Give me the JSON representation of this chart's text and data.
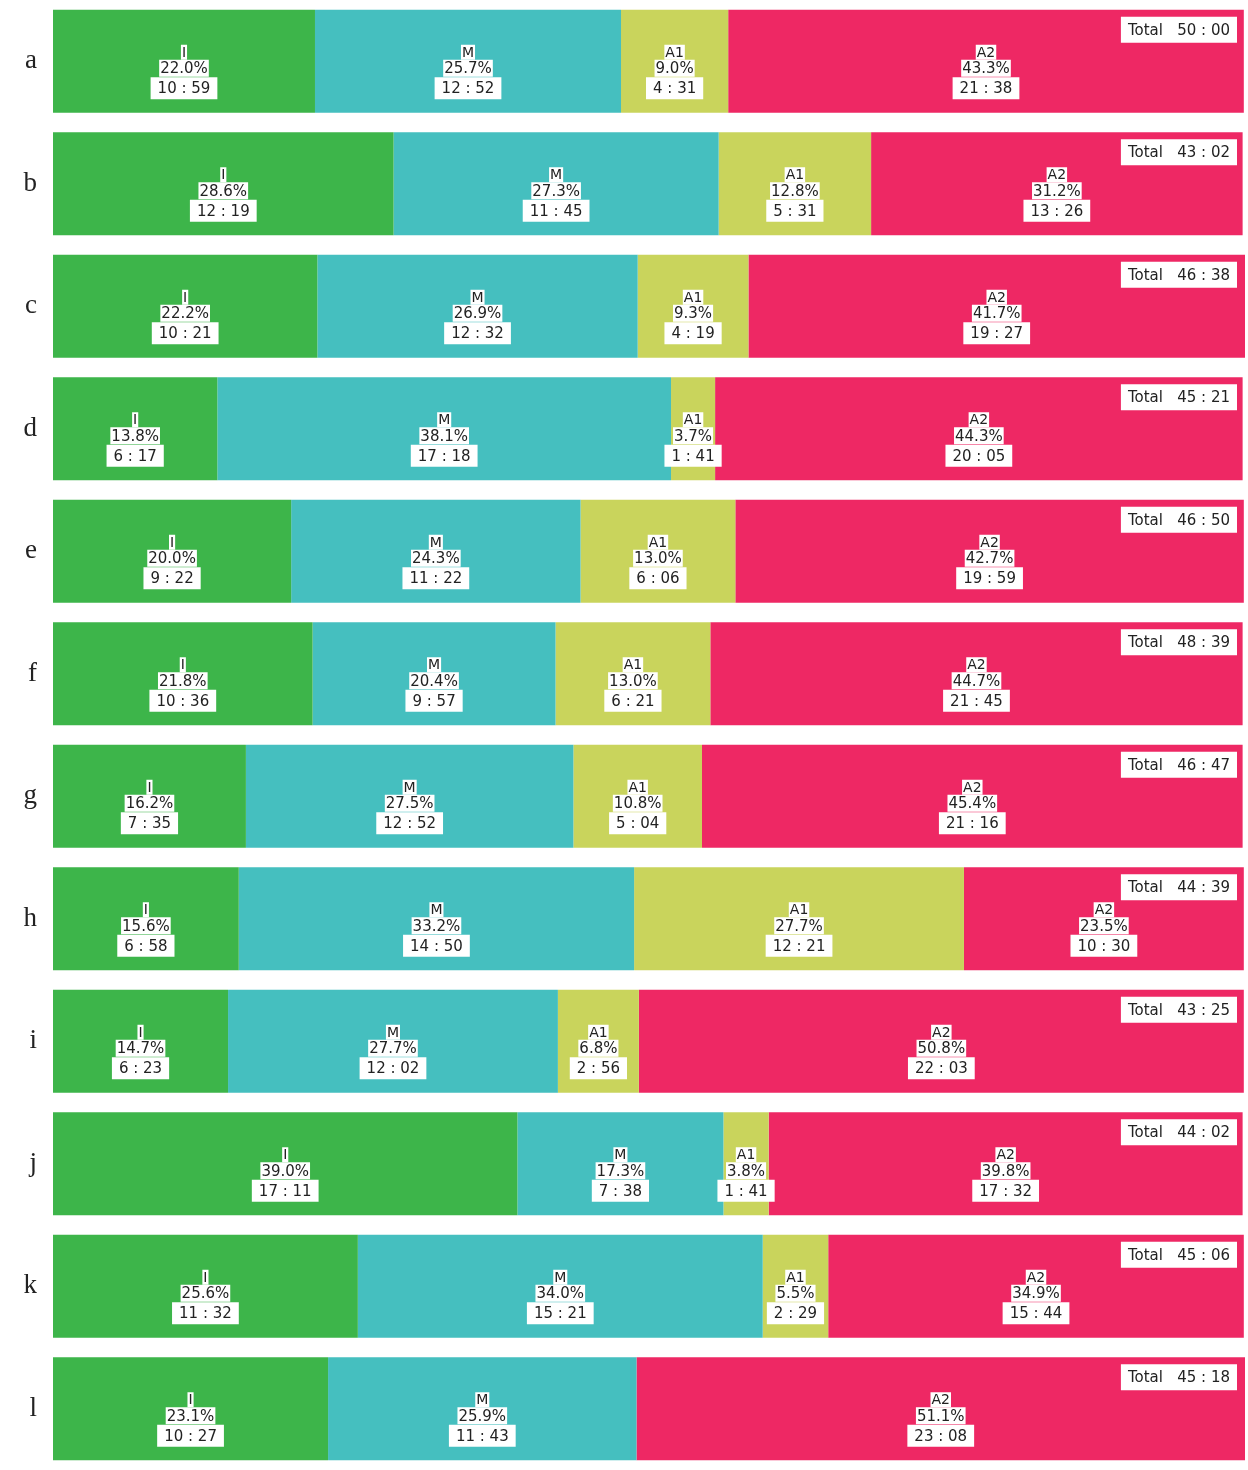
{
  "chart_data": {
    "type": "bar",
    "orientation": "horizontal",
    "stacked": true,
    "legend": false,
    "tick_labels": "y",
    "xlim": [
      0,
      100.1
    ],
    "categories": [
      "a",
      "b",
      "c",
      "d",
      "e",
      "f",
      "g",
      "h",
      "i",
      "j",
      "k",
      "l"
    ],
    "series": [
      {
        "name": "I",
        "color": "#3db54a",
        "values": [
          22.0,
          28.6,
          22.2,
          13.8,
          20.0,
          21.8,
          16.2,
          15.6,
          14.7,
          39.0,
          25.6,
          23.1
        ],
        "value_labels": [
          "22.0%\n10 : 59",
          "28.6%\n12 : 19",
          "22.2%\n10 : 21",
          "13.8%\n6 : 17",
          "20.0%\n9 : 22",
          "21.8%\n10 : 36",
          "16.2%\n7 : 35",
          "15.6%\n6 : 58",
          "14.7%\n6 : 23",
          "39.0%\n17 : 11",
          "25.6%\n11 : 32",
          "23.1%\n10 : 27"
        ]
      },
      {
        "name": "M",
        "color": "#45bfbf",
        "values": [
          25.7,
          27.3,
          26.9,
          38.1,
          24.3,
          20.4,
          27.5,
          33.2,
          27.7,
          17.3,
          34.0,
          25.9
        ],
        "value_labels": [
          "25.7%\n12 : 52",
          "27.3%\n11 : 45",
          "26.9%\n12 : 32",
          "38.1%\n17 : 18",
          "24.3%\n11 : 22",
          "20.4%\n9 : 57",
          "27.5%\n12 : 52",
          "33.2%\n14 : 50",
          "27.7%\n12 : 02",
          "17.3%\n7 : 38",
          "34.0%\n15 : 21",
          "25.9%\n11 : 43"
        ]
      },
      {
        "name": "A1",
        "color": "#c9d45c",
        "values": [
          9.0,
          12.8,
          9.3,
          3.7,
          13.0,
          13.0,
          10.8,
          27.7,
          6.8,
          3.8,
          5.5,
          null
        ],
        "value_labels": [
          "9.0%\n4 : 31",
          "12.8%\n5 : 31",
          "9.3%\n4 : 19",
          "3.7%\n1 : 41",
          "13.0%\n6 : 06",
          "13.0%\n6 : 21",
          "10.8%\n5 : 04",
          "27.7%\n12 : 21",
          "6.8%\n2 : 56",
          "3.8%\n1 : 41",
          "5.5%\n2 : 29",
          null
        ]
      },
      {
        "name": "A2",
        "color": "#ee2864",
        "values": [
          43.3,
          31.2,
          41.7,
          44.3,
          42.7,
          44.7,
          45.4,
          23.5,
          50.8,
          39.8,
          34.9,
          51.1
        ],
        "value_labels": [
          "43.3%\n21 : 38",
          "31.2%\n13 : 26",
          "41.7%\n19 : 27",
          "44.3%\n20 : 05",
          "42.7%\n19 : 59",
          "44.7%\n21 : 45",
          "45.4%\n21 : 16",
          "23.5%\n10 : 30",
          "50.8%\n22 : 03",
          "39.8%\n17 : 32",
          "34.9%\n15 : 44",
          "51.1%\n23 : 08"
        ]
      }
    ],
    "totals": [
      "Total   50 : 00",
      "Total   43 : 02",
      "Total   46 : 38",
      "Total   45 : 21",
      "Total   46 : 50",
      "Total   48 : 39",
      "Total   46 : 47",
      "Total   44 : 39",
      "Total   43 : 25",
      "Total   44 : 02",
      "Total   45 : 06",
      "Total   45 : 18"
    ]
  }
}
